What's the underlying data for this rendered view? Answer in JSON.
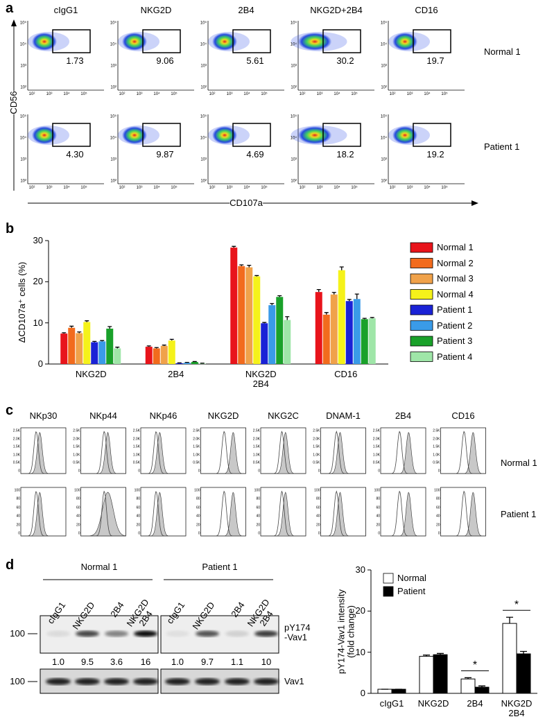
{
  "panel_labels": [
    "a",
    "b",
    "c",
    "d"
  ],
  "flow": {
    "columns": [
      "cIgG1",
      "NKG2D",
      "2B4",
      "NKG2D+2B4",
      "CD16"
    ],
    "rows": [
      "Normal 1",
      "Patient 1"
    ],
    "gates": [
      [
        "1.73",
        "9.06",
        "5.61",
        "30.2",
        "19.7"
      ],
      [
        "4.30",
        "9.87",
        "4.69",
        "18.2",
        "19.2"
      ]
    ],
    "y_label": "CD56",
    "x_label": "CD107a",
    "ticks": [
      "10²",
      "10³",
      "10⁴",
      "10⁵"
    ]
  },
  "histograms": {
    "columns": [
      "NKp30",
      "NKp44",
      "NKp46",
      "NKG2D",
      "NKG2C",
      "DNAM-1",
      "2B4",
      "CD16"
    ],
    "rows": [
      "Normal 1",
      "Patient 1"
    ],
    "yticks": [
      [
        "2.5K",
        "2.0K",
        "1.5K",
        "1.0K",
        "0.5K",
        "0"
      ],
      [
        "100",
        "80",
        "60",
        "40",
        "20",
        "0"
      ]
    ]
  },
  "blot": {
    "groups": [
      "Normal 1",
      "Patient 1"
    ],
    "lanes": [
      "cIgG1",
      "NKG2D",
      "2B4",
      "NKG2D\n2B4"
    ],
    "size_marker": "100",
    "rows": [
      "pY174\n-Vav1",
      "Vav1"
    ],
    "quantities": [
      [
        "1.0",
        "9.5",
        "3.6",
        "16"
      ],
      [
        "1.0",
        "9.7",
        "1.1",
        "10"
      ]
    ]
  },
  "chart_data": [
    {
      "type": "bar",
      "y_label": "ΔCD107a⁺ cells (%)",
      "categories": [
        "NKG2D",
        "2B4",
        "NKG2D\n2B4",
        "CD16"
      ],
      "series": [
        {
          "name": "Normal 1",
          "color": "#e8141b",
          "values": [
            7.4,
            4.2,
            28.3,
            17.5
          ],
          "errors": [
            0.2,
            0.2,
            0.3,
            0.6
          ]
        },
        {
          "name": "Normal 2",
          "color": "#f26b1d",
          "values": [
            8.8,
            3.8,
            23.8,
            12.0
          ],
          "errors": [
            0.4,
            0.2,
            0.3,
            0.5
          ]
        },
        {
          "name": "Normal 3",
          "color": "#f0a24a",
          "values": [
            7.5,
            4.4,
            23.5,
            16.9
          ],
          "errors": [
            0.3,
            0.2,
            0.5,
            0.5
          ]
        },
        {
          "name": "Normal 4",
          "color": "#f5f21a",
          "values": [
            10.2,
            5.7,
            21.3,
            22.8
          ],
          "errors": [
            0.3,
            0.3,
            0.2,
            0.8
          ]
        },
        {
          "name": "Patient 1",
          "color": "#1a22d6",
          "values": [
            5.3,
            0.2,
            9.9,
            15.3
          ],
          "errors": [
            0.2,
            0.1,
            0.2,
            0.4
          ]
        },
        {
          "name": "Patient 2",
          "color": "#3a9be8",
          "values": [
            5.5,
            0.3,
            14.3,
            15.8
          ],
          "errors": [
            0.2,
            0.1,
            0.4,
            1.2
          ]
        },
        {
          "name": "Patient 3",
          "color": "#1aa12a",
          "values": [
            8.6,
            0.5,
            16.3,
            10.9
          ],
          "errors": [
            0.5,
            0.1,
            0.3,
            0.2
          ]
        },
        {
          "name": "Patient 4",
          "color": "#9fe6a8",
          "values": [
            3.8,
            0.1,
            10.7,
            11.1
          ],
          "errors": [
            0.3,
            0.1,
            0.8,
            0.2
          ]
        }
      ],
      "ylim": [
        0,
        30
      ],
      "yticks": [
        0,
        10,
        20,
        30
      ],
      "legend": "right"
    },
    {
      "type": "bar",
      "y_label": "pY174-Vav1 intensity\n(fold change)",
      "categories": [
        "cIgG1",
        "NKG2D",
        "2B4",
        "NKG2D\n2B4"
      ],
      "series": [
        {
          "name": "Normal",
          "color": "#ffffff",
          "values": [
            1.0,
            9.0,
            3.5,
            17.0
          ],
          "errors": [
            0,
            0.3,
            0.3,
            1.5
          ]
        },
        {
          "name": "Patient",
          "color": "#000000",
          "values": [
            1.0,
            9.4,
            1.5,
            9.6
          ],
          "errors": [
            0,
            0.3,
            0.3,
            0.6
          ]
        }
      ],
      "ylim": [
        0,
        30
      ],
      "yticks": [
        0,
        10,
        20,
        30
      ],
      "legend": "upper left",
      "annotations": [
        {
          "text": "*",
          "category": "2B4"
        },
        {
          "text": "*",
          "category": "NKG2D\n2B4"
        }
      ]
    }
  ]
}
